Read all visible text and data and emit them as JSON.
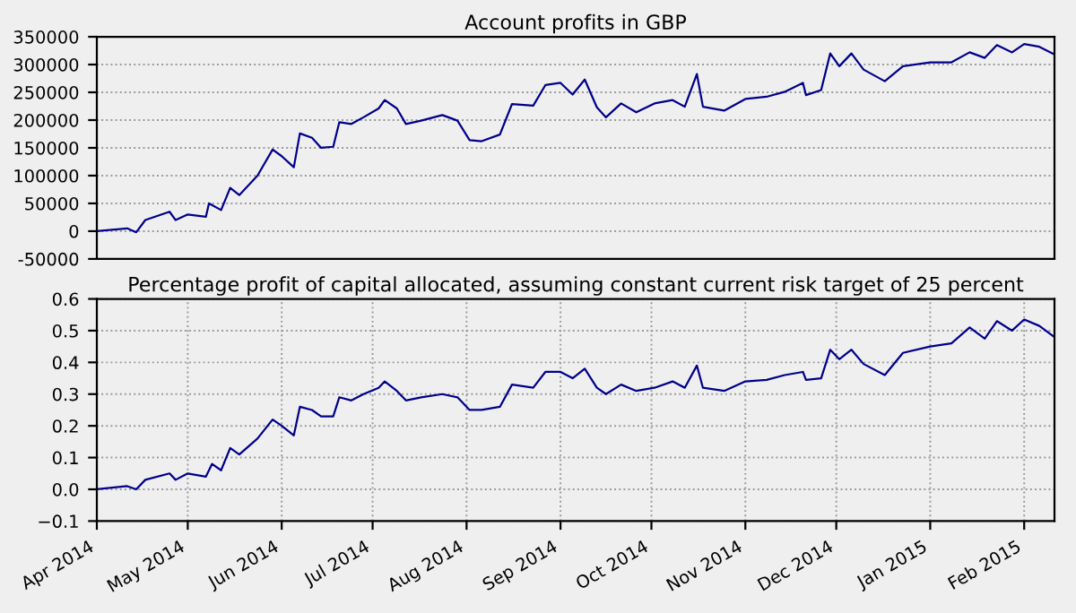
{
  "chart_data": [
    {
      "type": "line",
      "title": "Account profits in GBP",
      "tick_labels": "y",
      "grid": "y",
      "xlim": [
        "2014-04-01",
        "2015-02-11"
      ],
      "ylim": [
        -50000,
        350000
      ],
      "yticks": [
        -50000,
        0,
        50000,
        100000,
        150000,
        200000,
        250000,
        300000,
        350000
      ],
      "series": [
        {
          "color": "#00008b",
          "x": [
            "2014-04-01",
            "2014-04-11",
            "2014-04-14",
            "2014-04-17",
            "2014-04-25",
            "2014-04-27",
            "2014-05-01",
            "2014-05-07",
            "2014-05-08",
            "2014-05-12",
            "2014-05-15",
            "2014-05-18",
            "2014-05-24",
            "2014-05-29",
            "2014-06-01",
            "2014-06-05",
            "2014-06-07",
            "2014-06-11",
            "2014-06-14",
            "2014-06-18",
            "2014-06-20",
            "2014-06-24",
            "2014-06-28",
            "2014-07-03",
            "2014-07-05",
            "2014-07-09",
            "2014-07-12",
            "2014-07-17",
            "2014-07-24",
            "2014-07-29",
            "2014-08-02",
            "2014-08-06",
            "2014-08-12",
            "2014-08-16",
            "2014-08-23",
            "2014-08-27",
            "2014-09-01",
            "2014-09-05",
            "2014-09-09",
            "2014-09-13",
            "2014-09-16",
            "2014-09-21",
            "2014-09-26",
            "2014-10-02",
            "2014-10-08",
            "2014-10-12",
            "2014-10-16",
            "2014-10-18",
            "2014-10-25",
            "2014-11-01",
            "2014-11-08",
            "2014-11-14",
            "2014-11-20",
            "2014-11-21",
            "2014-11-26",
            "2014-11-29",
            "2014-12-02",
            "2014-12-06",
            "2014-12-10",
            "2014-12-17",
            "2014-12-23",
            "2015-01-01",
            "2015-01-08",
            "2015-01-14",
            "2015-01-19",
            "2015-01-23",
            "2015-01-28",
            "2015-02-01",
            "2015-02-06",
            "2015-02-11"
          ],
          "values": [
            0,
            5000,
            -2000,
            20000,
            35000,
            20000,
            30000,
            26000,
            50000,
            38000,
            78000,
            65000,
            100000,
            147000,
            135000,
            115000,
            176000,
            168000,
            150000,
            152000,
            196000,
            193000,
            205000,
            221000,
            236000,
            221000,
            193000,
            199000,
            209000,
            199000,
            164000,
            162000,
            174000,
            229000,
            226000,
            263000,
            267000,
            246000,
            273000,
            223000,
            205000,
            230000,
            214000,
            230000,
            236000,
            224000,
            283000,
            224000,
            217000,
            238000,
            242000,
            251000,
            267000,
            245000,
            254000,
            320000,
            297000,
            320000,
            291000,
            270000,
            297000,
            304000,
            304000,
            322000,
            312000,
            335000,
            322000,
            337000,
            332000,
            318000
          ]
        }
      ]
    },
    {
      "type": "line",
      "title": "Percentage profit of capital allocated, assuming constant current risk target of 25 percent",
      "grid": true,
      "xlim": [
        "2014-04-01",
        "2015-02-11"
      ],
      "ylim": [
        -0.1,
        0.6
      ],
      "yticks": [
        {
          "value": -0.1,
          "label": "−0.1"
        },
        {
          "value": 0.0,
          "label": "0.0"
        },
        0.1,
        0.2,
        0.3,
        0.4,
        0.5,
        0.6
      ],
      "xticks": [
        {
          "value": "2014-04-01",
          "label": "Apr 2014"
        },
        {
          "value": "2014-05-01",
          "label": "May 2014"
        },
        {
          "value": "2014-06-01",
          "label": "Jun 2014"
        },
        {
          "value": "2014-07-01",
          "label": "Jul 2014"
        },
        {
          "value": "2014-08-01",
          "label": "Aug 2014"
        },
        {
          "value": "2014-09-01",
          "label": "Sep 2014"
        },
        {
          "value": "2014-10-01",
          "label": "Oct 2014"
        },
        {
          "value": "2014-11-01",
          "label": "Nov 2014"
        },
        {
          "value": "2014-12-01",
          "label": "Dec 2014"
        },
        {
          "value": "2015-01-01",
          "label": "Jan 2015"
        },
        {
          "value": "2015-02-01",
          "label": "Feb 2015"
        }
      ],
      "series": [
        {
          "color": "#00008b",
          "x": [
            "2014-04-01",
            "2014-04-11",
            "2014-04-14",
            "2014-04-17",
            "2014-04-25",
            "2014-04-27",
            "2014-05-01",
            "2014-05-07",
            "2014-05-09",
            "2014-05-12",
            "2014-05-15",
            "2014-05-18",
            "2014-05-24",
            "2014-05-29",
            "2014-06-01",
            "2014-06-05",
            "2014-06-07",
            "2014-06-11",
            "2014-06-14",
            "2014-06-18",
            "2014-06-20",
            "2014-06-24",
            "2014-06-28",
            "2014-07-03",
            "2014-07-05",
            "2014-07-09",
            "2014-07-12",
            "2014-07-17",
            "2014-07-24",
            "2014-07-29",
            "2014-08-02",
            "2014-08-06",
            "2014-08-12",
            "2014-08-16",
            "2014-08-23",
            "2014-08-27",
            "2014-09-01",
            "2014-09-05",
            "2014-09-09",
            "2014-09-13",
            "2014-09-16",
            "2014-09-21",
            "2014-09-26",
            "2014-10-02",
            "2014-10-08",
            "2014-10-12",
            "2014-10-16",
            "2014-10-18",
            "2014-10-25",
            "2014-11-01",
            "2014-11-08",
            "2014-11-14",
            "2014-11-20",
            "2014-11-21",
            "2014-11-26",
            "2014-11-29",
            "2014-12-02",
            "2014-12-06",
            "2014-12-10",
            "2014-12-17",
            "2014-12-23",
            "2015-01-01",
            "2015-01-08",
            "2015-01-14",
            "2015-01-19",
            "2015-01-23",
            "2015-01-28",
            "2015-02-01",
            "2015-02-06",
            "2015-02-11"
          ],
          "values": [
            0,
            0.01,
            0.0,
            0.03,
            0.05,
            0.03,
            0.05,
            0.04,
            0.08,
            0.06,
            0.13,
            0.11,
            0.16,
            0.22,
            0.2,
            0.17,
            0.26,
            0.25,
            0.23,
            0.23,
            0.29,
            0.28,
            0.3,
            0.32,
            0.34,
            0.31,
            0.28,
            0.29,
            0.3,
            0.29,
            0.25,
            0.25,
            0.26,
            0.33,
            0.32,
            0.37,
            0.37,
            0.35,
            0.38,
            0.32,
            0.3,
            0.33,
            0.31,
            0.32,
            0.34,
            0.32,
            0.39,
            0.32,
            0.31,
            0.34,
            0.345,
            0.36,
            0.37,
            0.345,
            0.35,
            0.44,
            0.41,
            0.44,
            0.395,
            0.36,
            0.43,
            0.45,
            0.46,
            0.51,
            0.475,
            0.53,
            0.5,
            0.535,
            0.515,
            0.48
          ]
        }
      ]
    }
  ]
}
